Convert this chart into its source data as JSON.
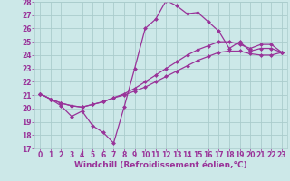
{
  "background_color": "#cce8e8",
  "grid_color": "#aacccc",
  "line_color": "#993399",
  "xlabel": "Windchill (Refroidissement éolien,°C)",
  "xlabel_color": "#993399",
  "xlim": [
    -0.5,
    23.5
  ],
  "ylim": [
    17,
    28
  ],
  "xticks": [
    0,
    1,
    2,
    3,
    4,
    5,
    6,
    7,
    8,
    9,
    10,
    11,
    12,
    13,
    14,
    15,
    16,
    17,
    18,
    19,
    20,
    21,
    22,
    23
  ],
  "yticks": [
    17,
    18,
    19,
    20,
    21,
    22,
    23,
    24,
    25,
    26,
    27,
    28
  ],
  "line1_x": [
    0,
    1,
    2,
    3,
    4,
    5,
    6,
    7,
    8,
    9,
    10,
    11,
    12,
    13,
    14,
    15,
    16,
    17,
    18,
    19,
    20,
    21,
    22,
    23
  ],
  "line1_y": [
    21.1,
    20.7,
    20.2,
    19.4,
    19.8,
    18.7,
    18.2,
    17.4,
    20.1,
    23.0,
    26.0,
    26.7,
    28.1,
    27.7,
    27.1,
    27.2,
    26.5,
    25.8,
    24.5,
    25.0,
    24.3,
    24.5,
    24.5,
    24.2
  ],
  "line2_x": [
    0,
    1,
    2,
    3,
    4,
    5,
    6,
    7,
    8,
    9,
    10,
    11,
    12,
    13,
    14,
    15,
    16,
    17,
    18,
    19,
    20,
    21,
    22,
    23
  ],
  "line2_y": [
    21.1,
    20.7,
    20.4,
    20.2,
    20.1,
    20.3,
    20.5,
    20.8,
    21.1,
    21.5,
    22.0,
    22.5,
    23.0,
    23.5,
    24.0,
    24.4,
    24.7,
    25.0,
    25.0,
    24.8,
    24.5,
    24.8,
    24.8,
    24.2
  ],
  "line3_x": [
    0,
    1,
    2,
    3,
    4,
    5,
    6,
    7,
    8,
    9,
    10,
    11,
    12,
    13,
    14,
    15,
    16,
    17,
    18,
    19,
    20,
    21,
    22,
    23
  ],
  "line3_y": [
    21.1,
    20.7,
    20.4,
    20.2,
    20.1,
    20.3,
    20.5,
    20.8,
    21.0,
    21.3,
    21.6,
    22.0,
    22.4,
    22.8,
    23.2,
    23.6,
    23.9,
    24.2,
    24.3,
    24.3,
    24.1,
    24.0,
    24.0,
    24.2
  ],
  "marker_size": 2.5,
  "linewidth": 0.9,
  "tick_labelsize": 5.5,
  "xlabel_fontsize": 6.5
}
